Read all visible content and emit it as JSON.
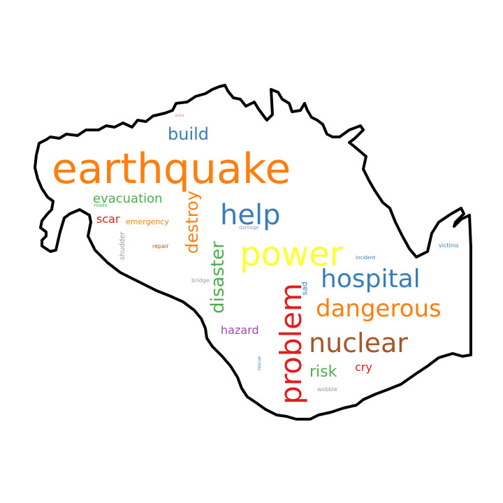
{
  "words": [
    {
      "text": "earthquake",
      "color": "#ff7f0e",
      "orientation": "horizontal"
    },
    {
      "text": "power",
      "color": "#ffff33",
      "orientation": "horizontal"
    },
    {
      "text": "hospital",
      "color": "#377eb8",
      "orientation": "horizontal"
    },
    {
      "text": "dangerous",
      "color": "#ff7f0e",
      "orientation": "horizontal"
    },
    {
      "text": "nuclear",
      "color": "#a65628",
      "orientation": "horizontal"
    },
    {
      "text": "problem",
      "color": "#e41a1c",
      "orientation": "vertical"
    },
    {
      "text": "help",
      "color": "#377eb8",
      "orientation": "horizontal"
    },
    {
      "text": "disaster",
      "color": "#4daf4a",
      "orientation": "vertical"
    },
    {
      "text": "destroy",
      "color": "#ff7f0e",
      "orientation": "vertical"
    },
    {
      "text": "build",
      "color": "#377eb8",
      "orientation": "horizontal"
    },
    {
      "text": "evacuation",
      "color": "#4daf4a",
      "orientation": "horizontal"
    },
    {
      "text": "risk",
      "color": "#4daf4a",
      "orientation": "horizontal"
    },
    {
      "text": "hazard",
      "color": "#984ea3",
      "orientation": "horizontal"
    },
    {
      "text": "cry",
      "color": "#e41a1c",
      "orientation": "horizontal"
    },
    {
      "text": "scar",
      "color": "#e41a1c",
      "orientation": "horizontal"
    },
    {
      "text": "emergency",
      "color": "#ff7f0e",
      "orientation": "horizontal"
    },
    {
      "text": "sad",
      "color": "#377eb8",
      "orientation": "vertical"
    },
    {
      "text": "shudder",
      "color": "#999999",
      "orientation": "vertical"
    },
    {
      "text": "repair",
      "color": "#a65628",
      "orientation": "horizontal"
    },
    {
      "text": "victims",
      "color": "#377eb8",
      "orientation": "horizontal"
    },
    {
      "text": "damage",
      "color": "#999999",
      "orientation": "horizontal"
    },
    {
      "text": "bridge",
      "color": "#999999",
      "orientation": "horizontal"
    },
    {
      "text": "incident",
      "color": "#377eb8",
      "orientation": "horizontal"
    },
    {
      "text": "roads",
      "color": "#4daf4a",
      "orientation": "horizontal"
    },
    {
      "text": "wobble",
      "color": "#999999",
      "orientation": "horizontal"
    },
    {
      "text": "rescue",
      "color": "#377eb8",
      "orientation": "vertical"
    },
    {
      "text": "area",
      "color": "#f781bf",
      "orientation": "horizontal"
    }
  ]
}
